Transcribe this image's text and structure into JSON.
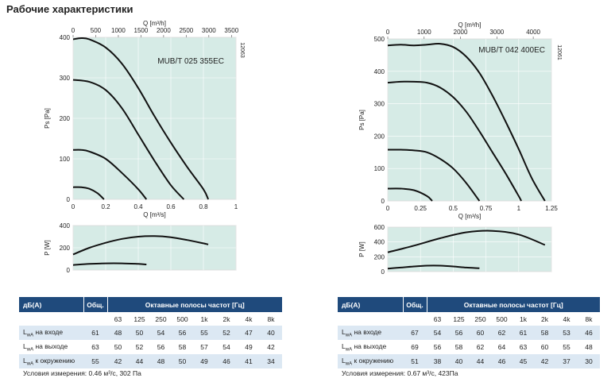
{
  "page_title": "Рабочие характеристики",
  "styles": {
    "plot_bg": "#d6ebe6",
    "curve": "#111111",
    "table_header_bg": "#1f4a7c",
    "table_stripe": "#dce8f3"
  },
  "chart_data": [
    {
      "type": "line",
      "title": "MUB/T 025 355EC",
      "side_code": "12063",
      "xlabel": "Q [m³/s]",
      "xlim": [
        0,
        1
      ],
      "xticks": [
        0,
        0.2,
        0.4,
        0.6,
        0.8,
        1
      ],
      "x2label": "Q [m³/h]",
      "x2ticks": [
        0,
        500,
        1000,
        1500,
        2000,
        2500,
        3000,
        3500
      ],
      "ylabel": "Ps [Pa]",
      "ylim": [
        0,
        400
      ],
      "yticks": [
        0,
        100,
        200,
        300,
        400
      ],
      "series": [
        {
          "x": [
            0,
            0.05,
            0.1,
            0.2,
            0.3,
            0.4,
            0.5,
            0.6,
            0.7,
            0.8,
            0.83
          ],
          "y": [
            395,
            398,
            395,
            375,
            335,
            275,
            205,
            140,
            80,
            25,
            0
          ]
        },
        {
          "x": [
            0,
            0.1,
            0.2,
            0.3,
            0.4,
            0.5,
            0.6,
            0.68
          ],
          "y": [
            295,
            290,
            270,
            225,
            160,
            95,
            35,
            0
          ]
        },
        {
          "x": [
            0,
            0.05,
            0.1,
            0.2,
            0.3,
            0.4,
            0.45
          ],
          "y": [
            122,
            122,
            118,
            100,
            65,
            25,
            0
          ]
        },
        {
          "x": [
            0,
            0.05,
            0.1,
            0.15,
            0.19
          ],
          "y": [
            30,
            30,
            26,
            15,
            0
          ]
        }
      ],
      "power": {
        "ylabel": "P [W]",
        "ylim": [
          0,
          400
        ],
        "yticks": [
          0,
          200,
          400
        ],
        "series": [
          {
            "x": [
              0,
              0.1,
              0.2,
              0.3,
              0.4,
              0.5,
              0.6,
              0.7,
              0.8,
              0.83
            ],
            "y": [
              140,
              200,
              245,
              280,
              300,
              305,
              295,
              270,
              240,
              230
            ]
          },
          {
            "x": [
              0,
              0.1,
              0.2,
              0.3,
              0.4,
              0.45
            ],
            "y": [
              45,
              55,
              60,
              60,
              55,
              50
            ]
          }
        ]
      }
    },
    {
      "type": "line",
      "title": "MUB/T 042 400EC",
      "side_code": "12061",
      "xlabel": "Q [m³/s]",
      "xlim": [
        0,
        1.25
      ],
      "xticks": [
        0,
        0.25,
        0.5,
        0.75,
        1,
        1.25
      ],
      "x2label": "Q [m³/h]",
      "x2ticks": [
        0,
        1000,
        2000,
        3000,
        4000
      ],
      "ylabel": "Ps [Pa]",
      "ylim": [
        0,
        500
      ],
      "yticks": [
        0,
        100,
        200,
        300,
        400,
        500
      ],
      "series": [
        {
          "x": [
            0,
            0.1,
            0.2,
            0.3,
            0.4,
            0.5,
            0.6,
            0.7,
            0.8,
            0.9,
            1.0,
            1.1,
            1.2
          ],
          "y": [
            480,
            482,
            480,
            482,
            485,
            475,
            445,
            395,
            325,
            245,
            160,
            70,
            0
          ]
        },
        {
          "x": [
            0,
            0.1,
            0.2,
            0.3,
            0.4,
            0.5,
            0.6,
            0.7,
            0.8,
            0.9,
            1.0,
            1.02
          ],
          "y": [
            365,
            368,
            368,
            365,
            350,
            320,
            275,
            215,
            150,
            85,
            15,
            0
          ]
        },
        {
          "x": [
            0,
            0.1,
            0.2,
            0.3,
            0.4,
            0.5,
            0.6,
            0.7
          ],
          "y": [
            158,
            158,
            156,
            150,
            130,
            100,
            55,
            0
          ]
        },
        {
          "x": [
            0,
            0.1,
            0.2,
            0.3,
            0.34
          ],
          "y": [
            38,
            38,
            33,
            15,
            0
          ]
        }
      ],
      "power": {
        "ylabel": "P [W]",
        "ylim": [
          0,
          600
        ],
        "yticks": [
          0,
          200,
          400,
          600
        ],
        "series": [
          {
            "x": [
              0,
              0.2,
              0.4,
              0.6,
              0.8,
              1.0,
              1.2
            ],
            "y": [
              260,
              350,
              450,
              530,
              550,
              500,
              360
            ]
          },
          {
            "x": [
              0,
              0.1,
              0.2,
              0.3,
              0.4,
              0.5,
              0.6,
              0.7
            ],
            "y": [
              40,
              55,
              70,
              80,
              80,
              70,
              55,
              45
            ]
          }
        ]
      }
    }
  ],
  "tables": [
    {
      "head_label": "дБ(А)",
      "head_total": "Общ.",
      "head_bands": "Октавные полосы частот [Гц]",
      "bands": [
        "63",
        "125",
        "250",
        "500",
        "1k",
        "2k",
        "4k",
        "8k"
      ],
      "rows": [
        {
          "label_main": "L",
          "label_sub": "wA",
          "label_rest": " на входе",
          "total": "61",
          "values": [
            "48",
            "50",
            "54",
            "56",
            "55",
            "52",
            "47",
            "40"
          ]
        },
        {
          "label_main": "L",
          "label_sub": "wA",
          "label_rest": " на выходе",
          "total": "63",
          "values": [
            "50",
            "52",
            "56",
            "58",
            "57",
            "54",
            "49",
            "42"
          ]
        },
        {
          "label_main": "L",
          "label_sub": "wA",
          "label_rest": " к окружению",
          "total": "55",
          "values": [
            "42",
            "44",
            "48",
            "50",
            "49",
            "46",
            "41",
            "34"
          ]
        }
      ],
      "condition_text": "Условия измерения: 0.46 м³/с, 302 Па"
    },
    {
      "head_label": "дБ(А)",
      "head_total": "Общ.",
      "head_bands": "Октавные полосы частот [Гц]",
      "bands": [
        "63",
        "125",
        "250",
        "500",
        "1k",
        "2k",
        "4k",
        "8k"
      ],
      "rows": [
        {
          "label_main": "L",
          "label_sub": "wA",
          "label_rest": " на входе",
          "total": "67",
          "values": [
            "54",
            "56",
            "60",
            "62",
            "61",
            "58",
            "53",
            "46"
          ]
        },
        {
          "label_main": "L",
          "label_sub": "wA",
          "label_rest": " на выходе",
          "total": "69",
          "values": [
            "56",
            "58",
            "62",
            "64",
            "63",
            "60",
            "55",
            "48"
          ]
        },
        {
          "label_main": "L",
          "label_sub": "wA",
          "label_rest": " к окружению",
          "total": "51",
          "values": [
            "38",
            "40",
            "44",
            "46",
            "45",
            "42",
            "37",
            "30"
          ]
        }
      ],
      "condition_text": "Условия измерения: 0.67 м³/с, 423Па"
    }
  ]
}
